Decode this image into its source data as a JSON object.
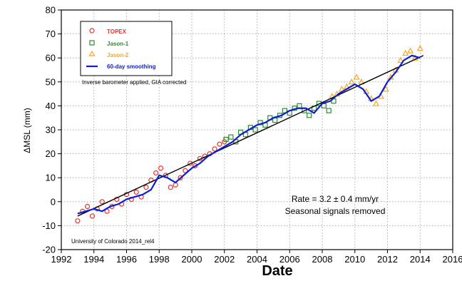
{
  "chart_data": {
    "type": "scatter",
    "xlabel": "Date",
    "ylabel": "ΔMSL (mm)",
    "xlim": [
      1992,
      2016
    ],
    "ylim": [
      -20,
      80
    ],
    "x_ticks": [
      1992,
      1994,
      1996,
      1998,
      2000,
      2002,
      2004,
      2006,
      2008,
      2010,
      2012,
      2014,
      2016
    ],
    "y_ticks": [
      -20,
      -10,
      0,
      10,
      20,
      30,
      40,
      50,
      60,
      70,
      80
    ],
    "grid": true,
    "legend_position": "top-left",
    "series": [
      {
        "name": "TOPEX",
        "marker": "circle",
        "color": "#e8342b",
        "x": [
          1993.0,
          1993.3,
          1993.6,
          1993.9,
          1994.2,
          1994.5,
          1994.8,
          1995.1,
          1995.4,
          1995.7,
          1996.0,
          1996.3,
          1996.6,
          1996.9,
          1997.2,
          1997.5,
          1997.8,
          1998.1,
          1998.4,
          1998.7,
          1999.0,
          1999.3,
          1999.6,
          1999.9,
          2000.2,
          2000.5,
          2000.8,
          2001.1,
          2001.4,
          2001.7,
          2002.0
        ],
        "y": [
          -8,
          -4,
          -2,
          -6,
          -3,
          0,
          -4,
          -2,
          1,
          -1,
          3,
          1,
          4,
          2,
          6,
          9,
          12,
          14,
          11,
          6,
          7,
          10,
          13,
          16,
          15,
          18,
          19,
          20,
          22,
          24,
          25
        ]
      },
      {
        "name": "Jason-1",
        "marker": "square",
        "color": "#2e8b2e",
        "x": [
          2002.1,
          2002.4,
          2002.7,
          2003.0,
          2003.3,
          2003.6,
          2003.9,
          2004.2,
          2004.5,
          2004.8,
          2005.1,
          2005.4,
          2005.7,
          2006.0,
          2006.3,
          2006.6,
          2006.9,
          2007.2,
          2007.5,
          2007.8,
          2008.1,
          2008.4,
          2008.7
        ],
        "y": [
          26,
          27,
          25,
          29,
          28,
          31,
          30,
          33,
          32,
          35,
          34,
          36,
          38,
          37,
          39,
          40,
          38,
          36,
          39,
          41,
          40,
          38,
          42
        ]
      },
      {
        "name": "Jason-2",
        "marker": "triangle",
        "color": "#f5a623",
        "x": [
          2008.6,
          2008.9,
          2009.2,
          2009.5,
          2009.8,
          2010.1,
          2010.4,
          2010.7,
          2011.0,
          2011.3,
          2011.6,
          2011.9,
          2012.2,
          2012.5,
          2012.8,
          2013.1,
          2013.4,
          2013.7,
          2014.0
        ],
        "y": [
          44,
          45,
          47,
          48,
          50,
          52,
          50,
          46,
          43,
          41,
          44,
          47,
          52,
          55,
          59,
          62,
          63,
          60,
          64
        ]
      }
    ],
    "smoothed": {
      "name": "60-day smoothing",
      "color": "#0b1fd6",
      "x": [
        1993.0,
        1993.5,
        1994.0,
        1994.5,
        1995.0,
        1995.5,
        1996.0,
        1996.5,
        1997.0,
        1997.5,
        1998.0,
        1998.5,
        1999.0,
        1999.5,
        2000.0,
        2000.5,
        2001.0,
        2001.5,
        2002.0,
        2002.5,
        2003.0,
        2003.5,
        2004.0,
        2004.5,
        2005.0,
        2005.5,
        2006.0,
        2006.5,
        2007.0,
        2007.5,
        2008.0,
        2008.5,
        2009.0,
        2009.5,
        2010.0,
        2010.5,
        2011.0,
        2011.5,
        2012.0,
        2012.5,
        2013.0,
        2013.5,
        2014.0
      ],
      "y": [
        -5,
        -4,
        -3,
        -4,
        -2,
        -1,
        1,
        2,
        3,
        5,
        11,
        10,
        8,
        11,
        14,
        16,
        19,
        21,
        23,
        25,
        28,
        30,
        32,
        33,
        35,
        36,
        38,
        39,
        39,
        37,
        41,
        42,
        45,
        47,
        49,
        47,
        42,
        44,
        50,
        54,
        59,
        61,
        60
      ]
    },
    "trend": {
      "slope_mm_per_yr": 3.2,
      "x": [
        1993.0,
        2014.2
      ],
      "y": [
        -6.0,
        61.0
      ],
      "color": "#000000"
    },
    "annotations": {
      "note": "Inverse barometer applied, GIA corrected",
      "rate": "Rate = 3.2 ± 0.4 mm/yr",
      "seasonal": "Seasonal signals removed",
      "credit": "University of Colorado 2014_rel4"
    }
  }
}
